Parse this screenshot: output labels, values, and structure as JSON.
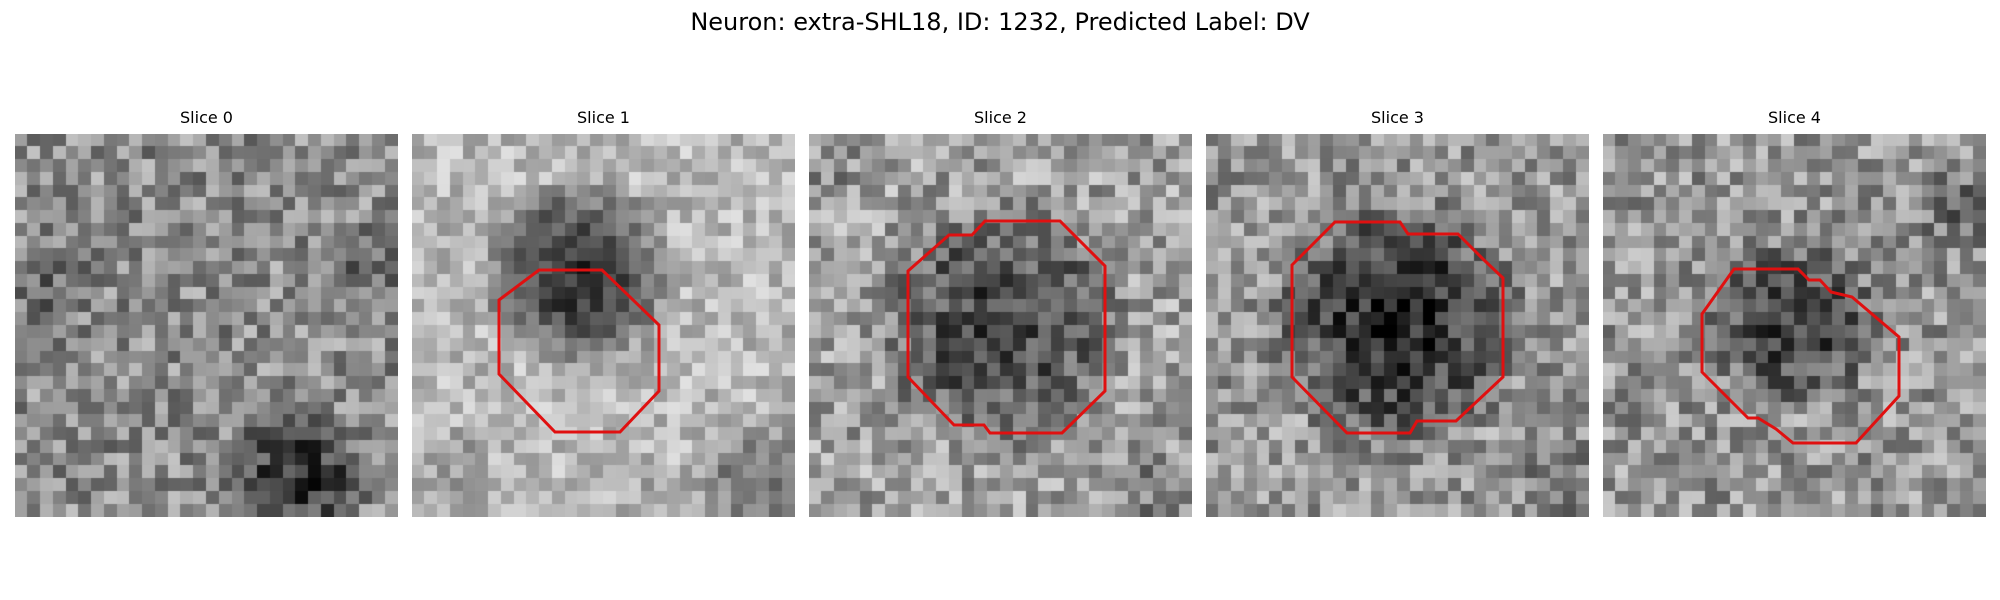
{
  "figure": {
    "title": "Neuron: extra-SHL18, ID: 1232, Predicted Label: DV"
  },
  "colors": {
    "contour": "#e01010",
    "background": "#ffffff"
  },
  "panels": [
    {
      "label": "Slice 0",
      "has_contour": false
    },
    {
      "label": "Slice 1",
      "has_contour": true
    },
    {
      "label": "Slice 2",
      "has_contour": true
    },
    {
      "label": "Slice 3",
      "has_contour": true
    },
    {
      "label": "Slice 4",
      "has_contour": true
    }
  ]
}
